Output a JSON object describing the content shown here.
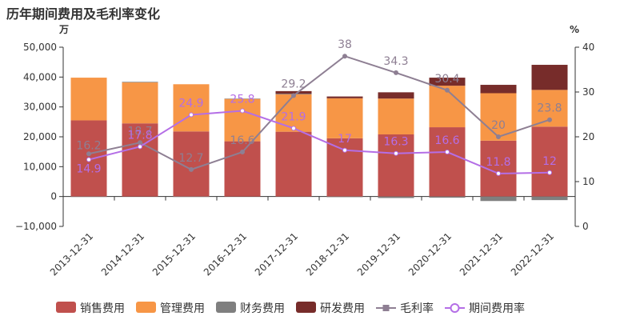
{
  "chart_data": {
    "type": "bar",
    "title": "历年期间费用及毛利率变化",
    "left_unit": "万",
    "right_unit": "%",
    "categories": [
      "2013-12-31",
      "2014-12-31",
      "2015-12-31",
      "2016-12-31",
      "2017-12-31",
      "2018-12-31",
      "2019-12-31",
      "2020-12-31",
      "2021-12-31",
      "2022-12-31"
    ],
    "left_axis": {
      "min": -10000,
      "max": 50000,
      "ticks": [
        -10000,
        0,
        10000,
        20000,
        30000,
        40000,
        50000
      ],
      "tick_labels": [
        "−10,000",
        "0",
        "10,000",
        "20,000",
        "30,000",
        "40,000",
        "50,000"
      ]
    },
    "right_axis": {
      "min": 0,
      "max": 40,
      "ticks": [
        0,
        10,
        20,
        30,
        40
      ],
      "tick_labels": [
        "0",
        "10",
        "20",
        "30",
        "40"
      ]
    },
    "bar_series": [
      {
        "name": "销售费用",
        "color": "#c0504d",
        "values": [
          25500,
          24500,
          21800,
          18500,
          21700,
          19500,
          20800,
          23200,
          18700,
          23400
        ]
      },
      {
        "name": "管理费用",
        "color": "#f79646",
        "values": [
          14300,
          13700,
          15800,
          14200,
          12500,
          13400,
          12000,
          13900,
          15900,
          12300
        ]
      },
      {
        "name": "财务费用",
        "color": "#7f7f7f",
        "values": [
          -100,
          200,
          -100,
          100,
          200,
          -200,
          -500,
          -400,
          -1500,
          -1200
        ]
      },
      {
        "name": "研发费用",
        "color": "#772c2a",
        "values": [
          0,
          0,
          0,
          0,
          900,
          600,
          2100,
          2700,
          2800,
          8400
        ]
      }
    ],
    "line_series": [
      {
        "name": "毛利率",
        "color": "#8e7f93",
        "values": [
          16.2,
          18.7,
          12.7,
          16.6,
          29.2,
          38,
          34.3,
          30.4,
          20,
          23.8
        ],
        "labels": [
          "16.2",
          "18.7",
          "12.7",
          "16.6",
          "29.2",
          "38",
          "34.3",
          "30.4",
          "20",
          "23.8"
        ]
      },
      {
        "name": "期间费用率",
        "color": "#b46ee6",
        "values": [
          14.9,
          17.8,
          24.9,
          25.8,
          21.9,
          17,
          16.3,
          16.6,
          11.8,
          12
        ],
        "labels": [
          "14.9",
          "17.8",
          "24.9",
          "25.8",
          "21.9",
          "17",
          "16.3",
          "16.6",
          "11.8",
          "12"
        ]
      }
    ],
    "legend_position": "bottom",
    "grid": false
  }
}
